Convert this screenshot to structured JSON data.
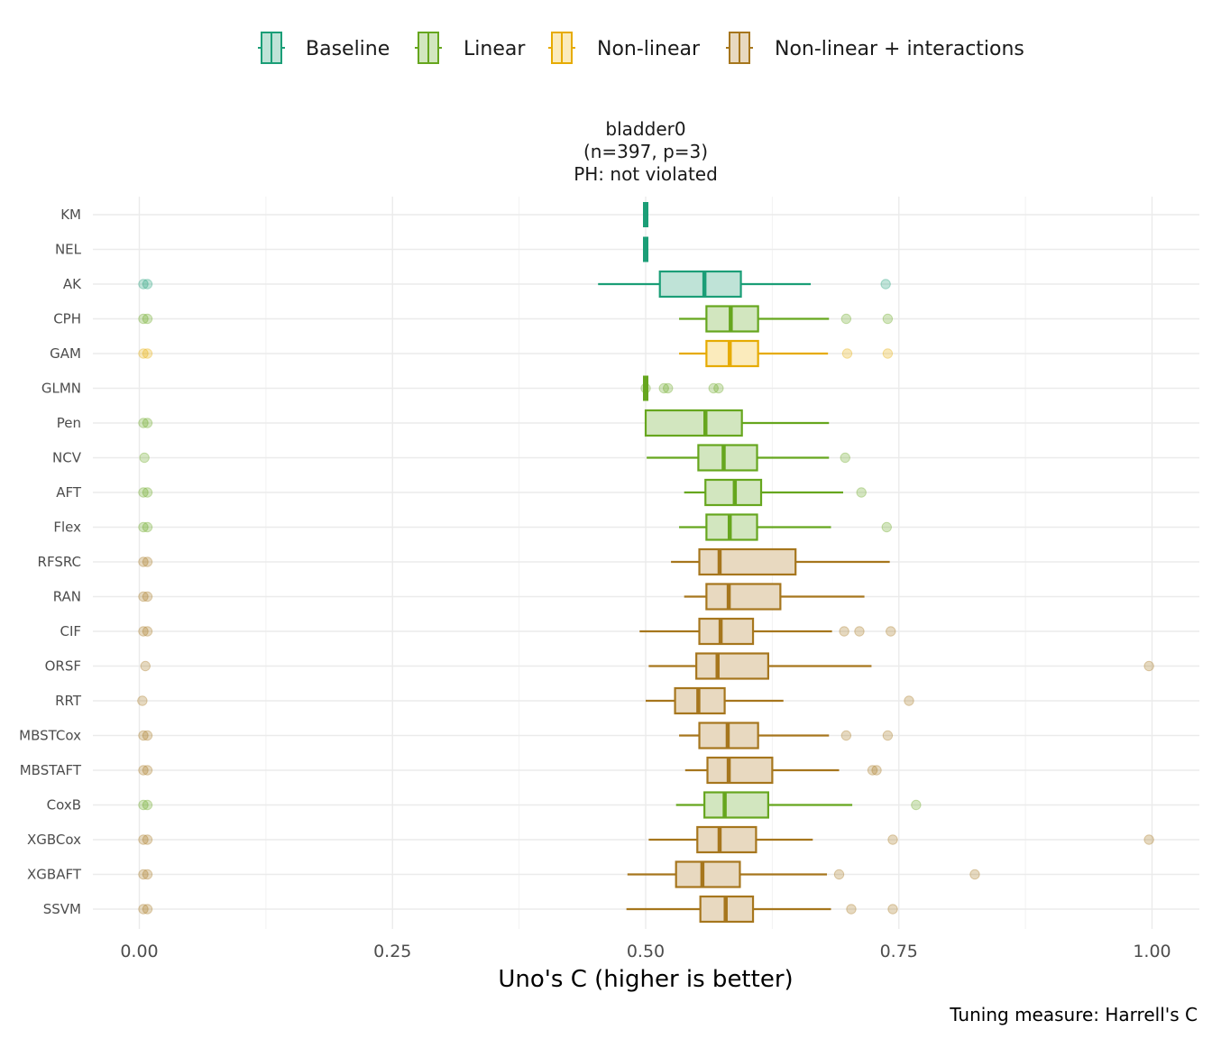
{
  "chart_data": {
    "type": "boxplot",
    "title_lines": [
      "bladder0",
      "(n=397, p=3)",
      "PH: not violated"
    ],
    "xlabel": "Uno's C (higher is better)",
    "caption": "Tuning measure: Harrell's C",
    "xlim": [
      -0.02,
      1.03
    ],
    "xticks": [
      0.0,
      0.25,
      0.5,
      0.75,
      1.0
    ],
    "xtick_labels": [
      "0.00",
      "0.25",
      "0.50",
      "0.75",
      "1.00"
    ],
    "legend_position": "top",
    "legend": [
      {
        "key": "baseline",
        "label": "Baseline"
      },
      {
        "key": "linear",
        "label": "Linear"
      },
      {
        "key": "nonlinear",
        "label": "Non-linear"
      },
      {
        "key": "interactions",
        "label": "Non-linear + interactions"
      }
    ],
    "colors": {
      "baseline": {
        "stroke": "#1b9e77",
        "fill": "#bfe3d7"
      },
      "linear": {
        "stroke": "#66a61e",
        "fill": "#d2e6bf"
      },
      "nonlinear": {
        "stroke": "#e6ab02",
        "fill": "#fbebbc"
      },
      "interactions": {
        "stroke": "#a6761d",
        "fill": "#e8d9c0"
      }
    },
    "learners": [
      {
        "name": "KM",
        "group": "baseline",
        "whisker_low": 0.5,
        "q1": 0.5,
        "median": 0.5,
        "q3": 0.5,
        "whisker_high": 0.5,
        "outliers": []
      },
      {
        "name": "NEL",
        "group": "baseline",
        "whisker_low": 0.5,
        "q1": 0.5,
        "median": 0.5,
        "q3": 0.5,
        "whisker_high": 0.5,
        "outliers": []
      },
      {
        "name": "AK",
        "group": "baseline",
        "whisker_low": 0.453,
        "q1": 0.514,
        "median": 0.558,
        "q3": 0.594,
        "whisker_high": 0.663,
        "outliers": [
          0.004,
          0.008,
          0.737
        ]
      },
      {
        "name": "CPH",
        "group": "linear",
        "whisker_low": 0.533,
        "q1": 0.56,
        "median": 0.584,
        "q3": 0.611,
        "whisker_high": 0.681,
        "outliers": [
          0.004,
          0.008,
          0.698,
          0.739
        ]
      },
      {
        "name": "GAM",
        "group": "nonlinear",
        "whisker_low": 0.533,
        "q1": 0.56,
        "median": 0.583,
        "q3": 0.611,
        "whisker_high": 0.68,
        "outliers": [
          0.004,
          0.008,
          0.699,
          0.739
        ]
      },
      {
        "name": "GLMN",
        "group": "linear",
        "whisker_low": 0.5,
        "q1": 0.5,
        "median": 0.5,
        "q3": 0.5,
        "whisker_high": 0.5,
        "outliers": [
          0.5,
          0.518,
          0.522,
          0.567,
          0.572
        ]
      },
      {
        "name": "Pen",
        "group": "linear",
        "whisker_low": 0.5,
        "q1": 0.5,
        "median": 0.559,
        "q3": 0.595,
        "whisker_high": 0.681,
        "outliers": [
          0.004,
          0.008
        ]
      },
      {
        "name": "NCV",
        "group": "linear",
        "whisker_low": 0.501,
        "q1": 0.552,
        "median": 0.577,
        "q3": 0.61,
        "whisker_high": 0.681,
        "outliers": [
          0.005,
          0.697
        ]
      },
      {
        "name": "AFT",
        "group": "linear",
        "whisker_low": 0.538,
        "q1": 0.559,
        "median": 0.588,
        "q3": 0.614,
        "whisker_high": 0.695,
        "outliers": [
          0.004,
          0.008,
          0.713
        ]
      },
      {
        "name": "Flex",
        "group": "linear",
        "whisker_low": 0.533,
        "q1": 0.56,
        "median": 0.583,
        "q3": 0.61,
        "whisker_high": 0.683,
        "outliers": [
          0.004,
          0.008,
          0.738
        ]
      },
      {
        "name": "RFSRC",
        "group": "interactions",
        "whisker_low": 0.525,
        "q1": 0.553,
        "median": 0.573,
        "q3": 0.648,
        "whisker_high": 0.741,
        "outliers": [
          0.004,
          0.008
        ]
      },
      {
        "name": "RAN",
        "group": "interactions",
        "whisker_low": 0.538,
        "q1": 0.56,
        "median": 0.582,
        "q3": 0.633,
        "whisker_high": 0.716,
        "outliers": [
          0.004,
          0.008
        ]
      },
      {
        "name": "CIF",
        "group": "interactions",
        "whisker_low": 0.494,
        "q1": 0.553,
        "median": 0.574,
        "q3": 0.606,
        "whisker_high": 0.684,
        "outliers": [
          0.004,
          0.008,
          0.696,
          0.711,
          0.742
        ]
      },
      {
        "name": "ORSF",
        "group": "interactions",
        "whisker_low": 0.503,
        "q1": 0.55,
        "median": 0.571,
        "q3": 0.621,
        "whisker_high": 0.723,
        "outliers": [
          0.006,
          0.997
        ]
      },
      {
        "name": "RRT",
        "group": "interactions",
        "whisker_low": 0.5,
        "q1": 0.529,
        "median": 0.552,
        "q3": 0.578,
        "whisker_high": 0.636,
        "outliers": [
          0.003,
          0.76
        ]
      },
      {
        "name": "MBSTCox",
        "group": "interactions",
        "whisker_low": 0.533,
        "q1": 0.553,
        "median": 0.581,
        "q3": 0.611,
        "whisker_high": 0.681,
        "outliers": [
          0.004,
          0.008,
          0.698,
          0.739
        ]
      },
      {
        "name": "MBSTAFT",
        "group": "interactions",
        "whisker_low": 0.539,
        "q1": 0.561,
        "median": 0.582,
        "q3": 0.625,
        "whisker_high": 0.691,
        "outliers": [
          0.004,
          0.008,
          0.724,
          0.728
        ]
      },
      {
        "name": "CoxB",
        "group": "linear",
        "whisker_low": 0.53,
        "q1": 0.558,
        "median": 0.578,
        "q3": 0.621,
        "whisker_high": 0.704,
        "outliers": [
          0.004,
          0.008,
          0.767
        ]
      },
      {
        "name": "XGBCox",
        "group": "interactions",
        "whisker_low": 0.503,
        "q1": 0.551,
        "median": 0.573,
        "q3": 0.609,
        "whisker_high": 0.665,
        "outliers": [
          0.004,
          0.008,
          0.744,
          0.997
        ]
      },
      {
        "name": "XGBAFT",
        "group": "interactions",
        "whisker_low": 0.482,
        "q1": 0.53,
        "median": 0.556,
        "q3": 0.593,
        "whisker_high": 0.679,
        "outliers": [
          0.004,
          0.008,
          0.691,
          0.825
        ]
      },
      {
        "name": "SSVM",
        "group": "interactions",
        "whisker_low": 0.481,
        "q1": 0.554,
        "median": 0.579,
        "q3": 0.606,
        "whisker_high": 0.683,
        "outliers": [
          0.004,
          0.008,
          0.703,
          0.744
        ]
      }
    ]
  }
}
